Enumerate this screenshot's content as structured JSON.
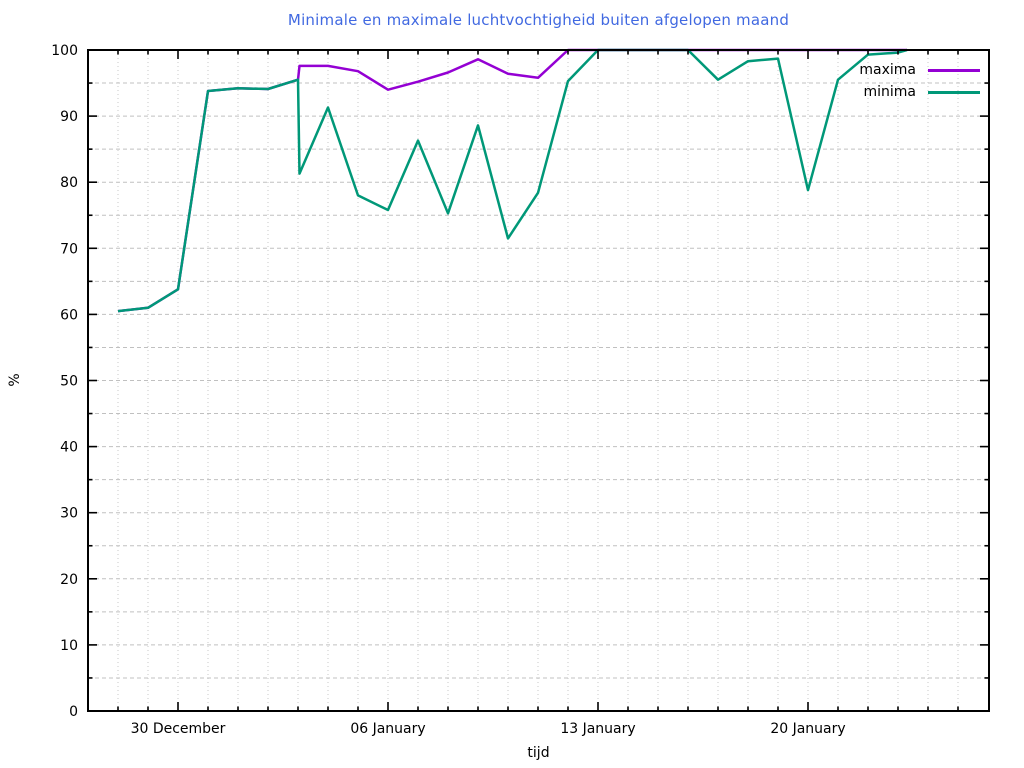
{
  "chart_data": {
    "type": "line",
    "title": "Minimale en maximale luchtvochtigheid buiten afgelopen maand",
    "xlabel": "tijd",
    "ylabel": "%",
    "ylim": [
      0,
      100
    ],
    "y_major_tick_step": 10,
    "y_minor_tick_step": 5,
    "grid": {
      "horizontal_value_step": 5,
      "vertical_step_days": 1,
      "shown": true
    },
    "x_axis": {
      "unit": "days",
      "day0_date": "28 December",
      "range_days": [
        -1,
        29.03
      ],
      "major_ticks": [
        {
          "day": 2,
          "label": "30 December"
        },
        {
          "day": 9,
          "label": "06 January"
        },
        {
          "day": 16,
          "label": "13 January"
        },
        {
          "day": 23,
          "label": "20 January"
        }
      ],
      "minor_tick_days_from": 0,
      "minor_tick_days_to": 28
    },
    "legend": {
      "position": "top-right-inside"
    },
    "colors": {
      "title": "#4169e1",
      "axis": "#000000",
      "grid_h": "#c0c0c0",
      "grid_v": "#c8c8c8",
      "tick_text": "#000000"
    },
    "clipping_note": "values at 100 coincide with top border and are hidden by it",
    "series": [
      {
        "name": "maxima",
        "color": "#9400d3",
        "points": [
          [
            0,
            60.5
          ],
          [
            1,
            61.0
          ],
          [
            2,
            63.8
          ],
          [
            3,
            93.8
          ],
          [
            4,
            94.2
          ],
          [
            5,
            94.1
          ],
          [
            6,
            95.5
          ],
          [
            6.05,
            97.6
          ],
          [
            7,
            97.6
          ],
          [
            8,
            96.8
          ],
          [
            9,
            94.0
          ],
          [
            10,
            95.2
          ],
          [
            11,
            96.6
          ],
          [
            12,
            98.6
          ],
          [
            13,
            96.4
          ],
          [
            14,
            95.8
          ],
          [
            15,
            100
          ],
          [
            26.3,
            100
          ]
        ]
      },
      {
        "name": "minima",
        "color": "#009878",
        "points": [
          [
            0,
            60.5
          ],
          [
            1,
            61.0
          ],
          [
            2,
            63.8
          ],
          [
            3,
            93.8
          ],
          [
            4,
            94.2
          ],
          [
            5,
            94.1
          ],
          [
            6,
            95.5
          ],
          [
            6.05,
            81.3
          ],
          [
            7,
            91.3
          ],
          [
            8,
            78.0
          ],
          [
            9,
            75.8
          ],
          [
            10,
            86.3
          ],
          [
            11,
            75.3
          ],
          [
            12,
            88.6
          ],
          [
            13,
            71.5
          ],
          [
            14,
            78.4
          ],
          [
            15,
            95.3
          ],
          [
            16,
            100
          ],
          [
            19,
            100
          ],
          [
            20,
            95.5
          ],
          [
            21,
            98.3
          ],
          [
            22,
            98.7
          ],
          [
            23,
            78.8
          ],
          [
            24,
            95.5
          ],
          [
            25,
            99.3
          ],
          [
            26,
            99.6
          ],
          [
            26.3,
            100
          ]
        ]
      }
    ]
  }
}
